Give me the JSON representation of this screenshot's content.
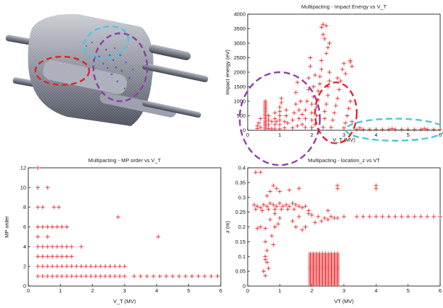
{
  "figure": {
    "cad_image": {
      "description_name": "cavity-3d-model-with-multipacting-particles",
      "highlight_colors": [
        "#e0252a",
        "#8e3fa0",
        "#4ec6d8"
      ]
    }
  },
  "colors": {
    "marker": "#e8272b",
    "axis": "#000000",
    "highlight_red": "#e0252a",
    "highlight_purple": "#8e3fa0",
    "highlight_cyan": "#4ec6d8"
  },
  "chart_data": [
    {
      "id": "impact",
      "type": "scatter",
      "marker": "plus",
      "title": "Multipacting - Impact Energy vs V_T",
      "xlabel": "V_T (MV)",
      "ylabel": "Impact energy (eV)",
      "xlim": [
        0,
        6
      ],
      "ylim": [
        0,
        4000
      ],
      "xticks": [
        "0",
        "1",
        "2",
        "3",
        "4",
        "5",
        "6"
      ],
      "yticks": [
        "0",
        "500",
        "1000",
        "1500",
        "2000",
        "2500",
        "3000",
        "3500",
        "4000"
      ],
      "grid": false,
      "annotations": [
        {
          "shape": "dashed-ellipse",
          "color": "#8e3fa0",
          "center": [
            1.0,
            400
          ],
          "radius": [
            1.25,
            1600
          ]
        },
        {
          "shape": "dashed-ellipse",
          "color": "#e0252a",
          "center": [
            2.75,
            600
          ],
          "radius": [
            0.65,
            1050
          ]
        },
        {
          "shape": "dashed-ellipse",
          "color": "#4ec6d8",
          "center": [
            4.6,
            20
          ],
          "radius": [
            1.55,
            380
          ]
        }
      ],
      "points": [
        [
          0.3,
          60
        ],
        [
          0.3,
          150
        ],
        [
          0.35,
          250
        ],
        [
          0.4,
          100
        ],
        [
          0.4,
          400
        ],
        [
          0.55,
          50
        ],
        [
          0.55,
          100
        ],
        [
          0.55,
          150
        ],
        [
          0.55,
          200
        ],
        [
          0.55,
          250
        ],
        [
          0.55,
          300
        ],
        [
          0.55,
          350
        ],
        [
          0.55,
          400
        ],
        [
          0.55,
          450
        ],
        [
          0.55,
          500
        ],
        [
          0.55,
          550
        ],
        [
          0.55,
          600
        ],
        [
          0.55,
          650
        ],
        [
          0.55,
          700
        ],
        [
          0.55,
          750
        ],
        [
          0.55,
          800
        ],
        [
          0.55,
          850
        ],
        [
          0.55,
          900
        ],
        [
          0.55,
          950
        ],
        [
          0.55,
          1000
        ],
        [
          0.65,
          60
        ],
        [
          0.65,
          200
        ],
        [
          0.65,
          350
        ],
        [
          0.65,
          500
        ],
        [
          0.75,
          50
        ],
        [
          0.75,
          300
        ],
        [
          0.85,
          50
        ],
        [
          0.85,
          200
        ],
        [
          0.85,
          400
        ],
        [
          0.85,
          600
        ],
        [
          0.9,
          300
        ],
        [
          1.0,
          50
        ],
        [
          1.0,
          200
        ],
        [
          1.0,
          350
        ],
        [
          1.0,
          500
        ],
        [
          1.0,
          650
        ],
        [
          1.0,
          800
        ],
        [
          1.05,
          950
        ],
        [
          1.05,
          1100
        ],
        [
          1.15,
          80
        ],
        [
          1.15,
          300
        ],
        [
          1.2,
          500
        ],
        [
          1.2,
          700
        ],
        [
          1.25,
          250
        ],
        [
          1.4,
          80
        ],
        [
          1.4,
          350
        ],
        [
          1.45,
          600
        ],
        [
          1.5,
          900
        ],
        [
          1.5,
          1300
        ],
        [
          1.55,
          1650
        ],
        [
          1.55,
          150
        ],
        [
          1.6,
          400
        ],
        [
          1.6,
          700
        ],
        [
          1.65,
          1000
        ],
        [
          1.7,
          200
        ],
        [
          1.7,
          550
        ],
        [
          1.8,
          100
        ],
        [
          1.8,
          400
        ],
        [
          1.8,
          700
        ],
        [
          1.85,
          1000
        ],
        [
          1.9,
          1400
        ],
        [
          1.9,
          1800
        ],
        [
          1.95,
          2200
        ],
        [
          1.95,
          2500
        ],
        [
          2.0,
          100
        ],
        [
          2.0,
          350
        ],
        [
          2.0,
          600
        ],
        [
          2.0,
          900
        ],
        [
          2.05,
          1150
        ],
        [
          2.05,
          1500
        ],
        [
          2.1,
          1900
        ],
        [
          2.1,
          200
        ],
        [
          2.15,
          500
        ],
        [
          2.15,
          800
        ],
        [
          2.2,
          1050
        ],
        [
          2.2,
          1350
        ],
        [
          2.25,
          1600
        ],
        [
          2.25,
          1850
        ],
        [
          2.3,
          2100
        ],
        [
          2.3,
          2400
        ],
        [
          2.3,
          3550
        ],
        [
          2.35,
          3650
        ],
        [
          2.35,
          3300
        ],
        [
          2.4,
          3150
        ],
        [
          2.45,
          3600
        ],
        [
          2.35,
          100
        ],
        [
          2.4,
          400
        ],
        [
          2.4,
          650
        ],
        [
          2.45,
          900
        ],
        [
          2.5,
          1200
        ],
        [
          2.5,
          1500
        ],
        [
          2.55,
          1700
        ],
        [
          2.55,
          2000
        ],
        [
          2.6,
          100
        ],
        [
          2.65,
          350
        ],
        [
          2.7,
          600
        ],
        [
          2.75,
          850
        ],
        [
          2.8,
          1100
        ],
        [
          2.85,
          1400
        ],
        [
          2.9,
          1700
        ],
        [
          3.0,
          80
        ],
        [
          3.05,
          250
        ],
        [
          3.1,
          500
        ],
        [
          3.15,
          750
        ],
        [
          3.2,
          1000
        ],
        [
          3.25,
          300
        ],
        [
          3.0,
          2300
        ],
        [
          2.95,
          2100
        ],
        [
          3.05,
          1950
        ],
        [
          2.8,
          1800
        ],
        [
          3.2,
          2350
        ],
        [
          2.5,
          2850
        ],
        [
          2.45,
          2650
        ],
        [
          2.55,
          3000
        ],
        [
          3.2,
          2400
        ],
        [
          3.25,
          2200
        ],
        [
          3.4,
          30
        ],
        [
          3.6,
          30
        ],
        [
          3.8,
          30
        ],
        [
          4.0,
          30
        ],
        [
          4.2,
          30
        ],
        [
          4.4,
          30
        ],
        [
          4.6,
          30
        ],
        [
          4.8,
          30
        ],
        [
          5.0,
          30
        ],
        [
          5.2,
          30
        ],
        [
          5.4,
          30
        ],
        [
          5.6,
          30
        ],
        [
          5.8,
          30
        ],
        [
          6.0,
          30
        ],
        [
          3.5,
          80
        ],
        [
          4.5,
          60
        ],
        [
          5.5,
          60
        ]
      ]
    },
    {
      "id": "mporder",
      "type": "scatter",
      "marker": "plus",
      "title": "Multipacting - MP order vs V_T",
      "xlabel": "V_T (MV)",
      "ylabel": "MP order",
      "xlim": [
        0,
        6
      ],
      "ylim": [
        0,
        12
      ],
      "xticks": [
        "0",
        "1",
        "2",
        "3",
        "4",
        "5",
        "6"
      ],
      "yticks": [
        "0",
        "2",
        "4",
        "6",
        "8",
        "10",
        "12"
      ],
      "grid": false,
      "points": [
        [
          0.3,
          12
        ],
        [
          0.3,
          10
        ],
        [
          0.6,
          10
        ],
        [
          0.3,
          8
        ],
        [
          0.45,
          8
        ],
        [
          0.8,
          8
        ],
        [
          0.95,
          8
        ],
        [
          0.3,
          6
        ],
        [
          0.45,
          6
        ],
        [
          0.6,
          6
        ],
        [
          0.75,
          6
        ],
        [
          0.9,
          6
        ],
        [
          1.05,
          6
        ],
        [
          1.2,
          6
        ],
        [
          0.3,
          5
        ],
        [
          0.6,
          5
        ],
        [
          0.3,
          4
        ],
        [
          0.45,
          4
        ],
        [
          0.6,
          4
        ],
        [
          0.75,
          4
        ],
        [
          0.9,
          4
        ],
        [
          1.05,
          4
        ],
        [
          1.2,
          4
        ],
        [
          1.35,
          4
        ],
        [
          1.65,
          4
        ],
        [
          0.3,
          3
        ],
        [
          0.45,
          3
        ],
        [
          0.6,
          3
        ],
        [
          0.75,
          3
        ],
        [
          0.9,
          3
        ],
        [
          1.05,
          3
        ],
        [
          1.2,
          3
        ],
        [
          1.35,
          3
        ],
        [
          0.3,
          2
        ],
        [
          0.45,
          2
        ],
        [
          0.6,
          2
        ],
        [
          0.75,
          2
        ],
        [
          0.9,
          2
        ],
        [
          1.05,
          2
        ],
        [
          1.2,
          2
        ],
        [
          1.35,
          2
        ],
        [
          1.5,
          2
        ],
        [
          1.65,
          2
        ],
        [
          1.8,
          2
        ],
        [
          1.95,
          2
        ],
        [
          2.1,
          2
        ],
        [
          2.25,
          2
        ],
        [
          2.4,
          2
        ],
        [
          2.55,
          2
        ],
        [
          2.7,
          2
        ],
        [
          2.85,
          2
        ],
        [
          3.0,
          2
        ],
        [
          0.3,
          1
        ],
        [
          0.45,
          1
        ],
        [
          0.6,
          1
        ],
        [
          0.75,
          1
        ],
        [
          0.9,
          1
        ],
        [
          1.05,
          1
        ],
        [
          1.2,
          1
        ],
        [
          1.35,
          1
        ],
        [
          1.5,
          1
        ],
        [
          1.65,
          1
        ],
        [
          1.8,
          1
        ],
        [
          1.95,
          1
        ],
        [
          2.1,
          1
        ],
        [
          2.25,
          1
        ],
        [
          2.4,
          1
        ],
        [
          2.55,
          1
        ],
        [
          2.7,
          1
        ],
        [
          2.85,
          1
        ],
        [
          3.0,
          1
        ],
        [
          3.3,
          1
        ],
        [
          3.5,
          1
        ],
        [
          3.7,
          1
        ],
        [
          3.9,
          1
        ],
        [
          4.1,
          1
        ],
        [
          4.3,
          1
        ],
        [
          4.5,
          1
        ],
        [
          4.7,
          1
        ],
        [
          4.9,
          1
        ],
        [
          5.1,
          1
        ],
        [
          5.3,
          1
        ],
        [
          5.5,
          1
        ],
        [
          5.7,
          1
        ],
        [
          5.9,
          1
        ],
        [
          2.8,
          7
        ],
        [
          4.05,
          5
        ]
      ]
    },
    {
      "id": "locz",
      "type": "scatter",
      "marker": "plus",
      "title": "Multipacting - location_z vs VT",
      "xlabel": "VT (MV)",
      "ylabel": "z (m)",
      "xlim": [
        0,
        6
      ],
      "ylim": [
        0,
        0.4
      ],
      "xticks": [
        "0",
        "1",
        "2",
        "3",
        "4",
        "5",
        "6"
      ],
      "yticks": [
        "0",
        "0.05",
        "0.1",
        "0.15",
        "0.2",
        "0.25",
        "0.3",
        "0.35",
        "0.4"
      ],
      "grid": false,
      "points": [
        [
          0.25,
          0.385
        ],
        [
          0.4,
          0.385
        ],
        [
          0.2,
          0.275
        ],
        [
          0.3,
          0.27
        ],
        [
          0.4,
          0.265
        ],
        [
          0.5,
          0.275
        ],
        [
          0.6,
          0.27
        ],
        [
          0.7,
          0.28
        ],
        [
          0.8,
          0.275
        ],
        [
          0.9,
          0.27
        ],
        [
          1.0,
          0.28
        ],
        [
          1.1,
          0.27
        ],
        [
          1.2,
          0.275
        ],
        [
          1.3,
          0.27
        ],
        [
          1.4,
          0.28
        ],
        [
          1.5,
          0.275
        ],
        [
          1.6,
          0.27
        ],
        [
          1.7,
          0.265
        ],
        [
          1.8,
          0.27
        ],
        [
          1.9,
          0.255
        ],
        [
          0.25,
          0.26
        ],
        [
          0.45,
          0.255
        ],
        [
          0.65,
          0.26
        ],
        [
          0.85,
          0.26
        ],
        [
          1.05,
          0.26
        ],
        [
          1.25,
          0.26
        ],
        [
          1.45,
          0.26
        ],
        [
          0.6,
          0.305
        ],
        [
          0.7,
          0.32
        ],
        [
          0.8,
          0.34
        ],
        [
          0.9,
          0.33
        ],
        [
          1.0,
          0.32
        ],
        [
          1.3,
          0.325
        ],
        [
          1.6,
          0.33
        ],
        [
          0.3,
          0.195
        ],
        [
          0.4,
          0.2
        ],
        [
          0.55,
          0.195
        ],
        [
          0.7,
          0.225
        ],
        [
          0.85,
          0.245
        ],
        [
          1.0,
          0.23
        ],
        [
          0.55,
          0.15
        ],
        [
          0.6,
          0.12
        ],
        [
          0.55,
          0.1
        ],
        [
          0.55,
          0.09
        ],
        [
          0.6,
          0.08
        ],
        [
          0.65,
          0.06
        ],
        [
          0.5,
          0.05
        ],
        [
          0.55,
          0.035
        ],
        [
          0.75,
          0.17
        ],
        [
          0.85,
          0.2
        ],
        [
          0.95,
          0.21
        ],
        [
          0.8,
          0.14
        ],
        [
          1.4,
          0.22
        ],
        [
          1.5,
          0.2
        ],
        [
          1.6,
          0.235
        ],
        [
          1.7,
          0.19
        ],
        [
          1.8,
          0.2
        ],
        [
          1.9,
          0.245
        ],
        [
          2.0,
          0.24
        ],
        [
          2.2,
          0.235
        ],
        [
          2.4,
          0.23
        ],
        [
          2.6,
          0.235
        ],
        [
          2.8,
          0.23
        ],
        [
          3.0,
          0.235
        ],
        [
          2.1,
          0.215
        ],
        [
          2.3,
          0.22
        ],
        [
          2.5,
          0.225
        ],
        [
          2.7,
          0.23
        ],
        [
          2.5,
          0.255
        ],
        [
          2.8,
          0.34
        ],
        [
          2.8,
          0.33
        ],
        [
          4.0,
          0.34
        ],
        [
          4.0,
          0.33
        ],
        [
          3.4,
          0.235
        ],
        [
          3.6,
          0.235
        ],
        [
          3.8,
          0.235
        ],
        [
          4.0,
          0.235
        ],
        [
          4.2,
          0.235
        ],
        [
          4.4,
          0.235
        ],
        [
          4.6,
          0.235
        ],
        [
          4.8,
          0.235
        ],
        [
          5.0,
          0.235
        ],
        [
          5.2,
          0.235
        ],
        [
          5.4,
          0.235
        ],
        [
          5.6,
          0.235
        ],
        [
          5.8,
          0.235
        ],
        [
          6.0,
          0.235
        ]
      ],
      "cluster": {
        "x": [
          1.95,
          2.8
        ],
        "z": [
          0.005,
          0.11
        ]
      }
    }
  ]
}
